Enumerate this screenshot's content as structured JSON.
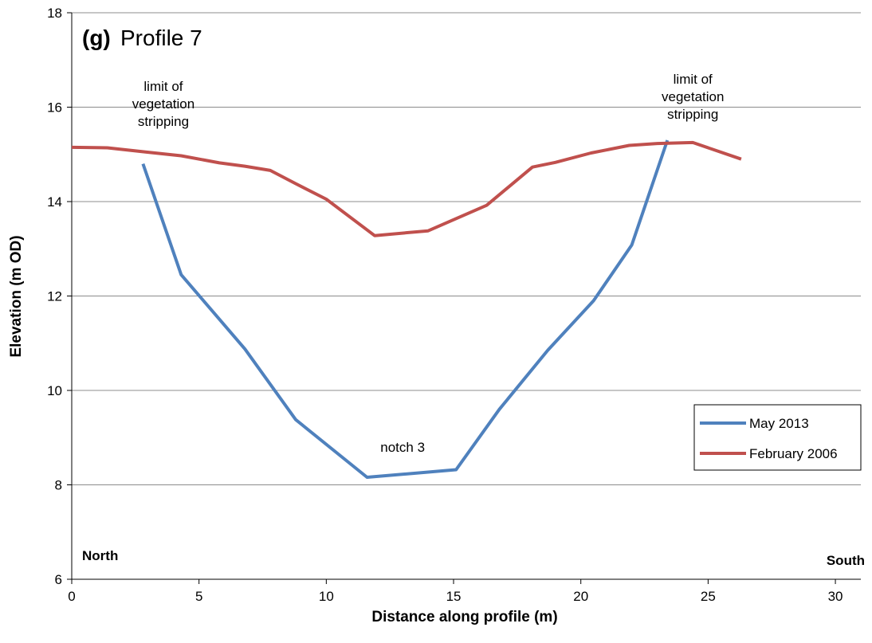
{
  "chart_data": {
    "type": "line",
    "title_prefix": "(g)",
    "title": "Profile 7",
    "xlabel": "Distance along profile (m)",
    "ylabel": "Elevation (m OD)",
    "xlim": [
      0,
      31
    ],
    "ylim": [
      6,
      18
    ],
    "xticks": [
      0,
      5,
      10,
      15,
      20,
      25,
      30
    ],
    "yticks": [
      6,
      8,
      10,
      12,
      14,
      16,
      18
    ],
    "grid": "horizontal",
    "legend_position": "right",
    "series": [
      {
        "name": "May 2013",
        "color": "#4F81BD",
        "points": [
          [
            2.8,
            14.8
          ],
          [
            4.3,
            12.45
          ],
          [
            6.8,
            10.88
          ],
          [
            8.8,
            9.38
          ],
          [
            11.6,
            8.16
          ],
          [
            15.1,
            8.32
          ],
          [
            16.8,
            9.6
          ],
          [
            18.7,
            10.85
          ],
          [
            20.5,
            11.9
          ],
          [
            22.0,
            13.08
          ],
          [
            23.4,
            15.3
          ]
        ]
      },
      {
        "name": "February 2006",
        "color": "#C0504D",
        "points": [
          [
            0,
            15.15
          ],
          [
            1.4,
            15.14
          ],
          [
            2.9,
            15.05
          ],
          [
            4.3,
            14.97
          ],
          [
            5.8,
            14.82
          ],
          [
            6.8,
            14.75
          ],
          [
            7.8,
            14.66
          ],
          [
            8.8,
            14.38
          ],
          [
            10.0,
            14.05
          ],
          [
            11.9,
            13.28
          ],
          [
            14.0,
            13.38
          ],
          [
            16.3,
            13.92
          ],
          [
            18.1,
            14.73
          ],
          [
            19.0,
            14.83
          ],
          [
            20.4,
            15.03
          ],
          [
            21.9,
            15.19
          ],
          [
            23.0,
            15.23
          ],
          [
            24.4,
            15.25
          ],
          [
            26.3,
            14.9
          ]
        ]
      }
    ],
    "annotations": [
      {
        "lines": [
          "limit of",
          "vegetation",
          "stripping"
        ],
        "x": 3.6,
        "y": 16.35
      },
      {
        "lines": [
          "limit of",
          "vegetation",
          "stripping"
        ],
        "x": 24.4,
        "y": 16.5
      },
      {
        "lines": [
          "notch 3"
        ],
        "x": 13.0,
        "y": 8.7
      }
    ],
    "corner_labels": {
      "left": "North",
      "right": "South"
    }
  }
}
